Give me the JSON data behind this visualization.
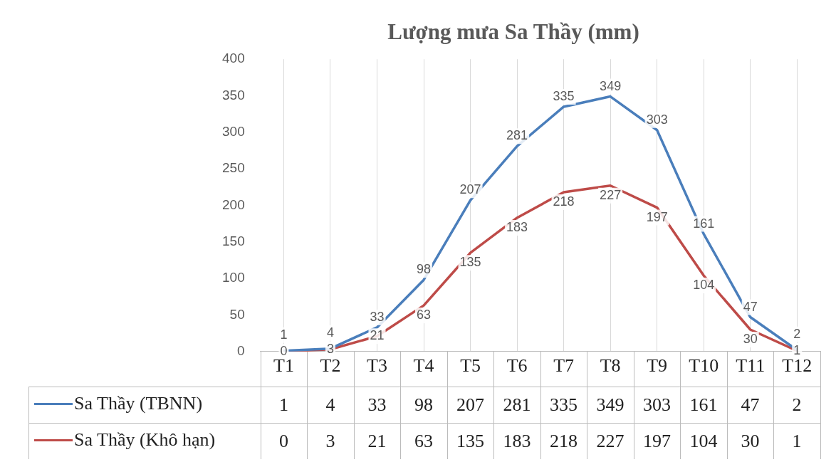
{
  "chart_data": {
    "type": "line",
    "title": "Lượng mưa Sa Thầy (mm)",
    "categories": [
      "T1",
      "T2",
      "T3",
      "T4",
      "T5",
      "T6",
      "T7",
      "T8",
      "T9",
      "T10",
      "T11",
      "T12"
    ],
    "series": [
      {
        "name": "Sa Thầy (TBNN)",
        "color": "#4a7ebb",
        "values": [
          1,
          4,
          33,
          98,
          207,
          281,
          335,
          349,
          303,
          161,
          47,
          2
        ]
      },
      {
        "name": "Sa Thầy (Khô hạn)",
        "color": "#be4b48",
        "values": [
          0,
          3,
          21,
          63,
          135,
          183,
          218,
          227,
          197,
          104,
          30,
          1
        ]
      }
    ],
    "annotations": [
      {
        "text": "1",
        "x": "T1",
        "y": 1
      },
      {
        "text": "4",
        "x": "T2",
        "y": 4
      },
      {
        "text": "33",
        "x": "T3",
        "y": 33
      },
      {
        "text": "98",
        "x": "T4",
        "y": 98
      },
      {
        "text": "207",
        "x": "T5",
        "y": 207
      },
      {
        "text": "281",
        "x": "T6",
        "y": 281
      },
      {
        "text": "335",
        "x": "T7",
        "y": 335
      },
      {
        "text": "349",
        "x": "T8",
        "y": 349
      },
      {
        "text": "303",
        "x": "T9",
        "y": 303
      },
      {
        "text": "161",
        "x": "T10",
        "y": 161
      },
      {
        "text": "47",
        "x": "T11",
        "y": 47
      },
      {
        "text": "2",
        "x": "T12",
        "y": 2
      },
      {
        "text": "0",
        "x": "T1",
        "y": 0
      },
      {
        "text": "3",
        "x": "T2",
        "y": 3
      },
      {
        "text": "21",
        "x": "T3",
        "y": 21
      },
      {
        "text": "63",
        "x": "T4",
        "y": 63
      },
      {
        "text": "135",
        "x": "T5",
        "y": 135
      },
      {
        "text": "183",
        "x": "T6",
        "y": 183
      },
      {
        "text": "218",
        "x": "T7",
        "y": 218
      },
      {
        "text": "227",
        "x": "T8",
        "y": 227
      },
      {
        "text": "197",
        "x": "T9",
        "y": 197
      },
      {
        "text": "104",
        "x": "T10",
        "y": 104
      },
      {
        "text": "30",
        "x": "T11",
        "y": 30
      },
      {
        "text": "1",
        "x": "T12",
        "y": 1
      }
    ],
    "ylim": [
      0,
      400
    ],
    "yticks": [
      0,
      50,
      100,
      150,
      200,
      250,
      300,
      350,
      400
    ],
    "grid": "x",
    "legend": "bottom",
    "marker": "none",
    "line_style": "solid",
    "data_labels": true
  }
}
